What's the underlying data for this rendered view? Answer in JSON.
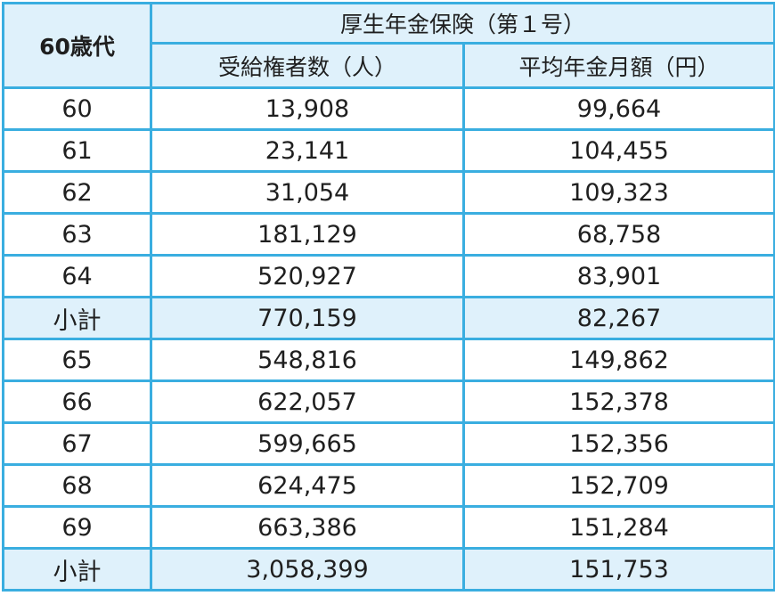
{
  "table": {
    "age_header": "60歳代",
    "group_header": "厚生年金保険（第１号）",
    "col_count_header": "受給権者数（人）",
    "col_avg_header": "平均年金月額（円）",
    "rows": [
      {
        "age": "60",
        "count": "13,908",
        "avg": "99,664",
        "subtotal": false
      },
      {
        "age": "61",
        "count": "23,141",
        "avg": "104,455",
        "subtotal": false
      },
      {
        "age": "62",
        "count": "31,054",
        "avg": "109,323",
        "subtotal": false
      },
      {
        "age": "63",
        "count": "181,129",
        "avg": "68,758",
        "subtotal": false
      },
      {
        "age": "64",
        "count": "520,927",
        "avg": "83,901",
        "subtotal": false
      },
      {
        "age": "小計",
        "count": "770,159",
        "avg": "82,267",
        "subtotal": true
      },
      {
        "age": "65",
        "count": "548,816",
        "avg": "149,862",
        "subtotal": false
      },
      {
        "age": "66",
        "count": "622,057",
        "avg": "152,378",
        "subtotal": false
      },
      {
        "age": "67",
        "count": "599,665",
        "avg": "152,356",
        "subtotal": false
      },
      {
        "age": "68",
        "count": "624,475",
        "avg": "152,709",
        "subtotal": false
      },
      {
        "age": "69",
        "count": "663,386",
        "avg": "151,284",
        "subtotal": false
      },
      {
        "age": "小計",
        "count": "3,058,399",
        "avg": "151,753",
        "subtotal": true
      }
    ]
  },
  "colors": {
    "border": "#3aaee0",
    "header_bg": "#dff1fb",
    "subtotal_bg": "#dff1fb",
    "text": "#1f1f1f"
  }
}
